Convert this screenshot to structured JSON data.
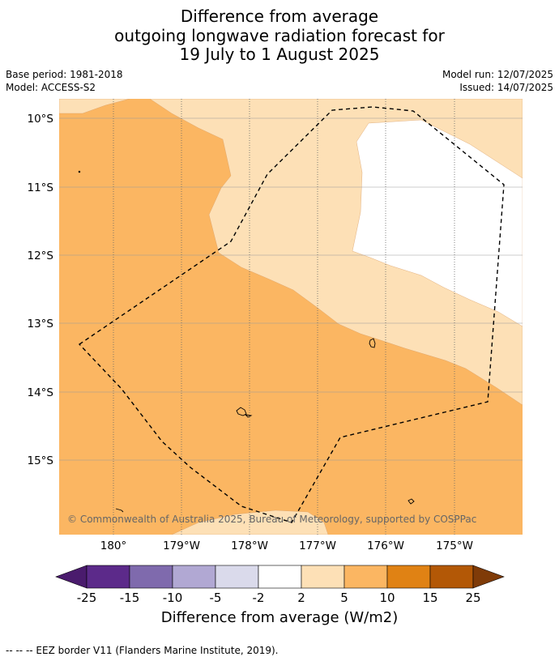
{
  "title": {
    "line1": "Difference from average",
    "line2": "outgoing longwave radiation forecast for",
    "line3": "19 July to 1 August 2025"
  },
  "meta": {
    "base_period": "Base period: 1981-2018",
    "model": "Model: ACCESS-S2",
    "model_run": "Model run: 12/07/2025",
    "issued": "Issued: 14/07/2025"
  },
  "map": {
    "lat_labels": [
      "10°S",
      "11°S",
      "12°S",
      "13°S",
      "14°S",
      "15°S"
    ],
    "lon_labels": [
      "180°",
      "179°W",
      "178°W",
      "177°W",
      "176°W",
      "175°W"
    ],
    "copyright": "© Commonwealth of Australia 2025, Bureau of Meteorology, supported by COSPPac",
    "colors": {
      "white": "#ffffff",
      "light_orange": "#fde0b6",
      "orange": "#fbb662",
      "gridline": "#999999"
    }
  },
  "colorbar": {
    "ticks": [
      "-25",
      "-15",
      "-10",
      "-5",
      "-2",
      "2",
      "5",
      "10",
      "15",
      "25"
    ],
    "colors": [
      "#4a1b6d",
      "#5c2a8a",
      "#7f6aad",
      "#b1a8d3",
      "#dadaeb",
      "#ffffff",
      "#fde0b6",
      "#fbb662",
      "#e08214",
      "#b35806",
      "#7f3b08"
    ],
    "title": "Difference from average (W/m2)"
  },
  "footer": "--  --  -- EEZ border V11 (Flanders Marine Institute, 2019)."
}
